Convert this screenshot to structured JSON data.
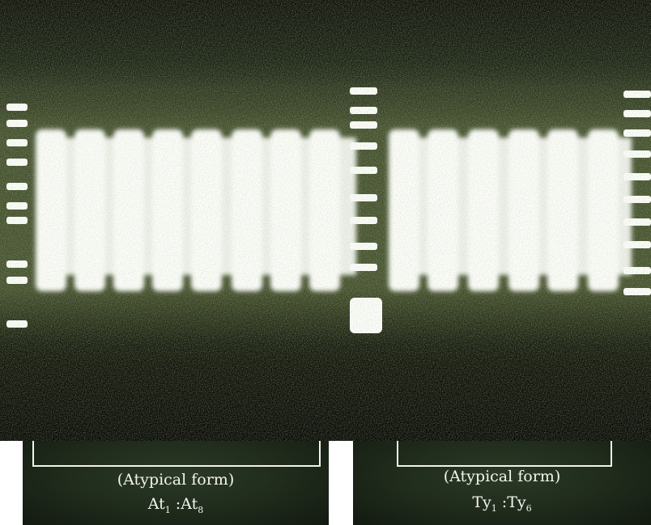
{
  "figure": {
    "panels": [
      {
        "caption": "(Atypical form)",
        "lane_from": "At",
        "from_sub": "1",
        "sep": " :",
        "lane_to": "At",
        "to_sub": "8"
      },
      {
        "caption": "(Atypical form)",
        "lane_from": "Ty",
        "from_sub": "1",
        "sep": " :",
        "lane_to": "Ty",
        "to_sub": "6"
      }
    ]
  },
  "colors": {
    "background": "#0d0f0a",
    "band": "#ffffff",
    "smear": "#4d5a34",
    "label": "#f4f4ef"
  }
}
